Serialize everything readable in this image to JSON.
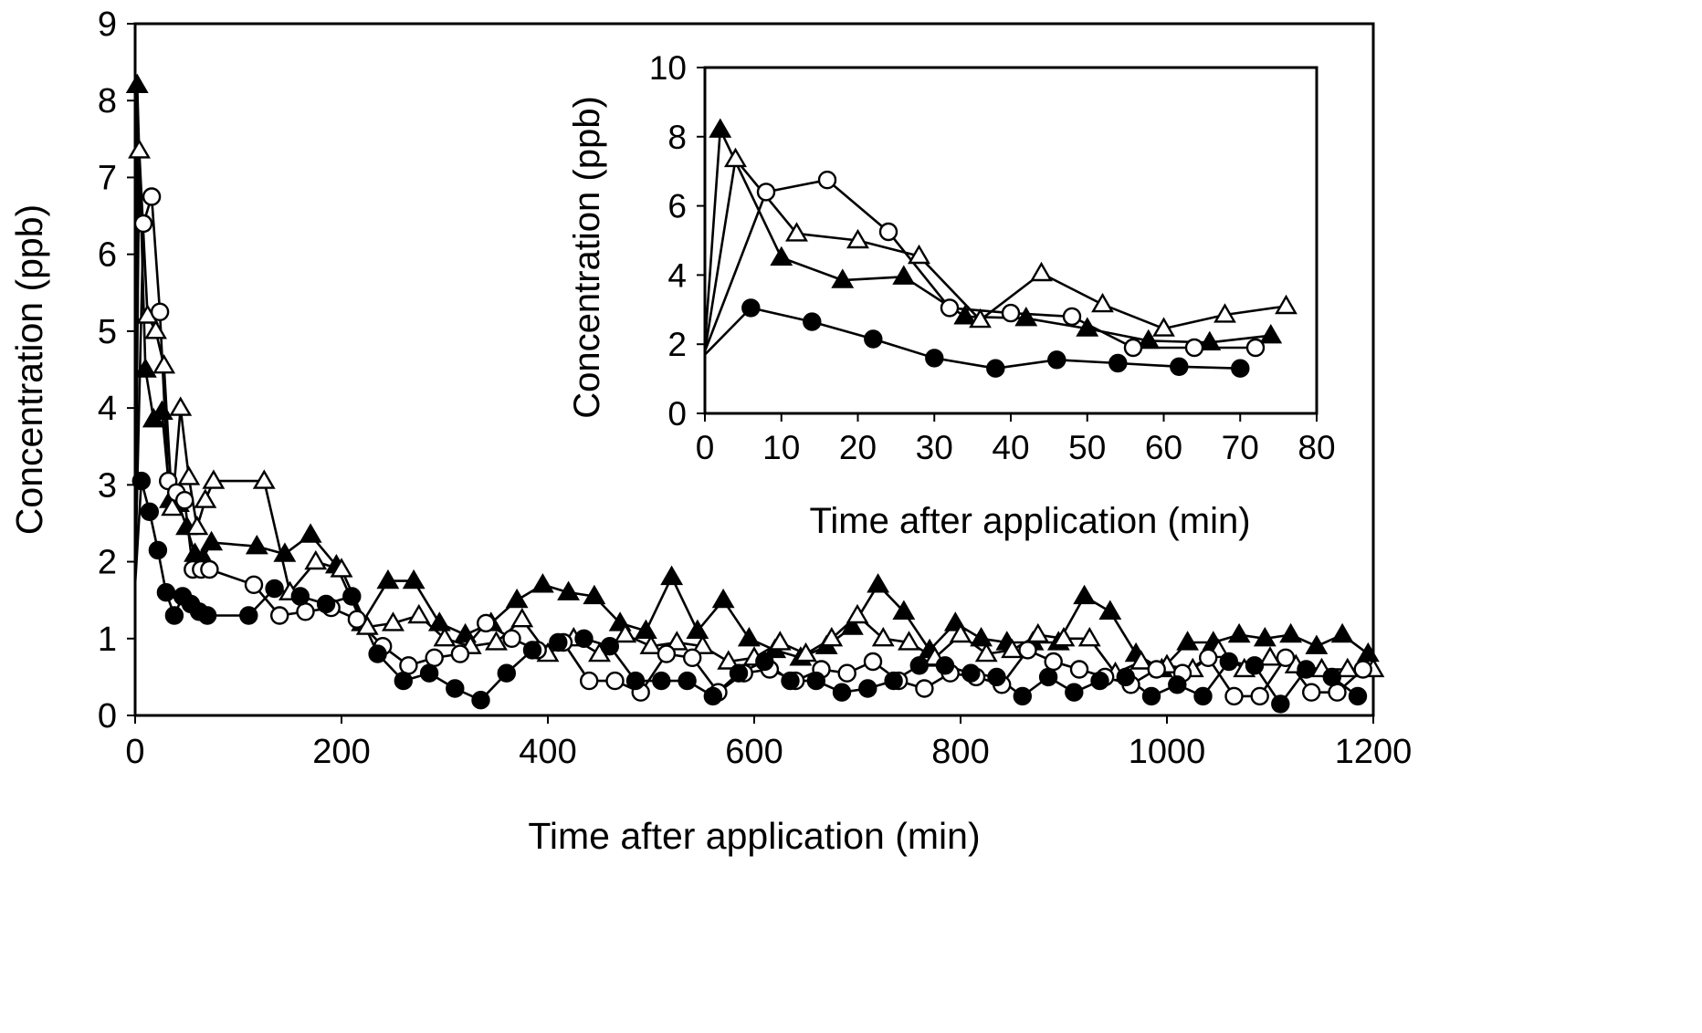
{
  "chart_data": [
    {
      "type": "line",
      "name": "main",
      "xlabel": "Time after application (min)",
      "ylabel": "Concentration (ppb)",
      "xlim": [
        0,
        1200
      ],
      "ylim": [
        0,
        9
      ],
      "xticks": [
        0,
        200,
        400,
        600,
        800,
        1000,
        1200
      ],
      "yticks": [
        0,
        1,
        2,
        3,
        4,
        5,
        6,
        7,
        8,
        9
      ],
      "grid": false,
      "series": [
        {
          "name": "filled triangle",
          "marker": "triangle-filled",
          "x": [
            0,
            2,
            10,
            18,
            26,
            34,
            42,
            50,
            58,
            66,
            74,
            118,
            145,
            170,
            195,
            220,
            245,
            270,
            295,
            320,
            345,
            370,
            395,
            420,
            445,
            470,
            495,
            520,
            545,
            570,
            595,
            620,
            645,
            670,
            695,
            720,
            745,
            770,
            795,
            820,
            845,
            870,
            895,
            920,
            945,
            970,
            995,
            1020,
            1045,
            1070,
            1095,
            1120,
            1145,
            1170,
            1195
          ],
          "y": [
            2.0,
            8.2,
            4.5,
            3.85,
            3.95,
            2.8,
            2.75,
            2.45,
            2.1,
            2.05,
            2.25,
            2.2,
            2.1,
            2.35,
            1.95,
            1.2,
            1.75,
            1.75,
            1.2,
            1.05,
            1.2,
            1.5,
            1.7,
            1.6,
            1.55,
            1.2,
            1.1,
            1.8,
            1.1,
            1.5,
            1.0,
            0.85,
            0.75,
            0.9,
            1.15,
            1.7,
            1.35,
            0.85,
            1.2,
            1.0,
            0.95,
            0.95,
            0.95,
            1.55,
            1.35,
            0.8,
            0.6,
            0.95,
            0.95,
            1.05,
            1.0,
            1.05,
            0.9,
            1.05,
            0.8
          ]
        },
        {
          "name": "open triangle",
          "marker": "triangle-open",
          "x": [
            0,
            4,
            12,
            20,
            28,
            36,
            44,
            52,
            60,
            68,
            76,
            125,
            150,
            175,
            200,
            225,
            250,
            275,
            300,
            325,
            350,
            375,
            400,
            425,
            450,
            475,
            500,
            525,
            550,
            575,
            600,
            625,
            650,
            675,
            700,
            725,
            750,
            775,
            800,
            825,
            850,
            875,
            900,
            925,
            950,
            975,
            1000,
            1025,
            1050,
            1075,
            1100,
            1125,
            1150,
            1175,
            1200
          ],
          "y": [
            1.8,
            7.35,
            5.2,
            5.0,
            4.55,
            2.7,
            4.0,
            3.1,
            2.45,
            2.8,
            3.05,
            3.05,
            1.6,
            2.0,
            1.9,
            1.15,
            1.2,
            1.3,
            1.0,
            0.9,
            0.95,
            1.25,
            0.8,
            1.0,
            0.8,
            1.05,
            0.9,
            0.95,
            0.9,
            0.7,
            0.75,
            0.95,
            0.8,
            1.0,
            1.3,
            1.0,
            0.95,
            0.75,
            1.05,
            0.8,
            0.85,
            1.05,
            1.0,
            1.0,
            0.55,
            0.7,
            0.65,
            0.6,
            0.85,
            0.6,
            0.75,
            0.65,
            0.6,
            0.6,
            0.6
          ]
        },
        {
          "name": "open circle",
          "marker": "circle-open",
          "x": [
            0,
            8,
            16,
            24,
            32,
            40,
            48,
            56,
            64,
            72,
            115,
            140,
            165,
            190,
            215,
            240,
            265,
            290,
            315,
            340,
            365,
            390,
            415,
            440,
            465,
            490,
            515,
            540,
            565,
            590,
            615,
            640,
            665,
            690,
            715,
            740,
            765,
            790,
            815,
            840,
            865,
            890,
            915,
            940,
            965,
            990,
            1015,
            1040,
            1065,
            1090,
            1115,
            1140,
            1165,
            1190
          ],
          "y": [
            1.8,
            6.4,
            6.75,
            5.25,
            3.05,
            2.9,
            2.8,
            1.9,
            1.9,
            1.9,
            1.7,
            1.3,
            1.35,
            1.4,
            1.25,
            0.9,
            0.65,
            0.75,
            0.8,
            1.2,
            1.0,
            0.85,
            0.95,
            0.45,
            0.45,
            0.3,
            0.8,
            0.75,
            0.3,
            0.55,
            0.6,
            0.45,
            0.6,
            0.55,
            0.7,
            0.45,
            0.35,
            0.55,
            0.5,
            0.4,
            0.85,
            0.7,
            0.6,
            0.5,
            0.4,
            0.6,
            0.55,
            0.75,
            0.25,
            0.25,
            0.75,
            0.3,
            0.3,
            0.6
          ]
        },
        {
          "name": "filled circle",
          "marker": "circle-filled",
          "x": [
            0,
            6,
            14,
            22,
            30,
            38,
            46,
            54,
            62,
            70,
            110,
            135,
            160,
            185,
            210,
            235,
            260,
            285,
            310,
            335,
            360,
            385,
            410,
            435,
            460,
            485,
            510,
            535,
            560,
            585,
            610,
            635,
            660,
            685,
            710,
            735,
            760,
            785,
            810,
            835,
            860,
            885,
            910,
            935,
            960,
            985,
            1010,
            1035,
            1060,
            1085,
            1110,
            1135,
            1160,
            1185
          ],
          "y": [
            1.7,
            3.05,
            2.65,
            2.15,
            1.6,
            1.3,
            1.55,
            1.45,
            1.35,
            1.3,
            1.3,
            1.65,
            1.55,
            1.45,
            1.55,
            0.8,
            0.45,
            0.55,
            0.35,
            0.2,
            0.55,
            0.85,
            0.95,
            1.0,
            0.9,
            0.45,
            0.45,
            0.45,
            0.25,
            0.55,
            0.7,
            0.45,
            0.45,
            0.3,
            0.35,
            0.45,
            0.65,
            0.65,
            0.55,
            0.5,
            0.25,
            0.5,
            0.3,
            0.45,
            0.5,
            0.25,
            0.4,
            0.25,
            0.7,
            0.65,
            0.15,
            0.6,
            0.5,
            0.25
          ]
        }
      ]
    },
    {
      "type": "line",
      "name": "inset",
      "xlabel": "Time after application (min)",
      "ylabel": "Concentration (ppb)",
      "xlim": [
        0,
        80
      ],
      "ylim": [
        0,
        10
      ],
      "xticks": [
        0,
        10,
        20,
        30,
        40,
        50,
        60,
        70,
        80
      ],
      "yticks": [
        0,
        2,
        4,
        6,
        8,
        10
      ],
      "grid": false,
      "series": [
        {
          "name": "filled triangle",
          "marker": "triangle-filled",
          "x": [
            0,
            2,
            10,
            18,
            26,
            34,
            42,
            50,
            58,
            66,
            74
          ],
          "y": [
            2.0,
            8.2,
            4.5,
            3.85,
            3.95,
            2.8,
            2.75,
            2.45,
            2.1,
            2.05,
            2.25
          ]
        },
        {
          "name": "open triangle",
          "marker": "triangle-open",
          "x": [
            0,
            4,
            12,
            20,
            28,
            36,
            44,
            52,
            60,
            68,
            76
          ],
          "y": [
            1.8,
            7.35,
            5.2,
            5.0,
            4.55,
            2.7,
            4.05,
            3.15,
            2.45,
            2.85,
            3.1
          ]
        },
        {
          "name": "open circle",
          "marker": "circle-open",
          "x": [
            0,
            8,
            16,
            24,
            32,
            40,
            48,
            56,
            64,
            72
          ],
          "y": [
            1.8,
            6.4,
            6.75,
            5.25,
            3.05,
            2.9,
            2.8,
            1.9,
            1.9,
            1.9
          ]
        },
        {
          "name": "filled circle",
          "marker": "circle-filled",
          "x": [
            0,
            6,
            14,
            22,
            30,
            38,
            46,
            54,
            62,
            70
          ],
          "y": [
            1.7,
            3.05,
            2.65,
            2.15,
            1.6,
            1.3,
            1.55,
            1.45,
            1.35,
            1.3
          ]
        }
      ]
    }
  ]
}
